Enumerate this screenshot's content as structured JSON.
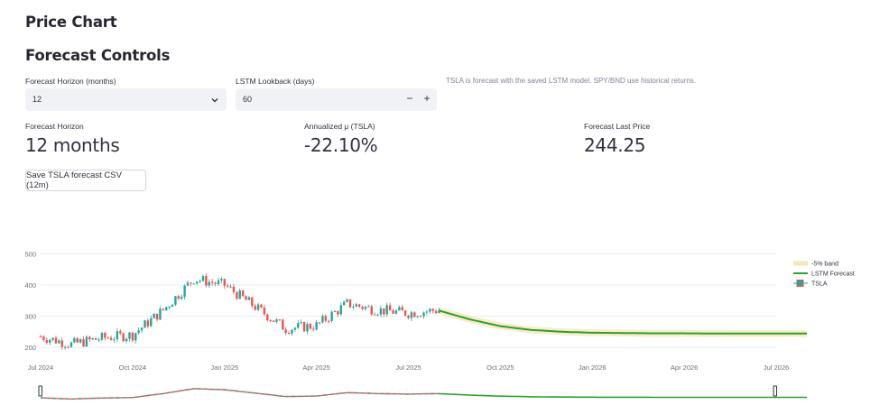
{
  "header": {
    "title": "Price Chart"
  },
  "controls": {
    "title": "Forecast Controls",
    "horizon": {
      "label": "Forecast Horizon (months)",
      "value": "12"
    },
    "lookback": {
      "label": "LSTM Lookback (days)",
      "value": "60",
      "minus": "−",
      "plus": "+"
    },
    "caption": "TSLA is forecast with the saved LSTM model. SPY/BND use historical returns."
  },
  "metrics": [
    {
      "label": "Forecast Horizon",
      "value": "12 months"
    },
    {
      "label": "Annualized μ (TSLA)",
      "value": "-22.10%"
    },
    {
      "label": "Forecast Last Price",
      "value": "244.25"
    }
  ],
  "save_button": {
    "label": "Save TSLA forecast CSV (12m)"
  },
  "chart_data": {
    "type": "line",
    "y_ticks": [
      "500",
      "400",
      "300",
      "200"
    ],
    "x_ticks": [
      "Jul 2024",
      "Oct 2024",
      "Jan 2025",
      "Apr 2025",
      "Jul 2025",
      "Oct 2025",
      "Jan 2026",
      "Apr 2026",
      "Jul 2026"
    ],
    "ylim": [
      180,
      510
    ],
    "legend": [
      "-5% band",
      "LSTM Forecast",
      "TSLA"
    ],
    "legend_position": "right",
    "grid": true,
    "colors": {
      "up": "#26a69a",
      "down": "#ef5350",
      "forecast": "#2ca02c",
      "band": "#f5e6b8"
    },
    "series": [
      {
        "name": "TSLA",
        "kind": "candlestick",
        "x": [
          "2024-07",
          "2024-08",
          "2024-09",
          "2024-10",
          "2024-11",
          "2024-12",
          "2025-01",
          "2025-02",
          "2025-03",
          "2025-04",
          "2025-05",
          "2025-06",
          "2025-07",
          "2025-08"
        ],
        "values": [
          235,
          210,
          230,
          240,
          320,
          420,
          400,
          330,
          260,
          270,
          340,
          320,
          310,
          320
        ]
      },
      {
        "name": "LSTM Forecast",
        "kind": "line",
        "x": [
          "2025-08",
          "2025-09",
          "2025-10",
          "2025-11",
          "2025-12",
          "2026-01",
          "2026-02",
          "2026-03",
          "2026-04",
          "2026-05",
          "2026-06",
          "2026-07",
          "2026-08"
        ],
        "values": [
          318,
          290,
          268,
          256,
          250,
          247,
          246,
          245,
          245,
          244.5,
          244.3,
          244.25,
          244.25
        ]
      },
      {
        "name": "-5% band",
        "kind": "band",
        "x": [
          "2025-08",
          "2025-09",
          "2025-10",
          "2025-11",
          "2025-12",
          "2026-01",
          "2026-02",
          "2026-03",
          "2026-04",
          "2026-05",
          "2026-06",
          "2026-07",
          "2026-08"
        ],
        "lower": [
          308,
          278,
          257,
          245,
          239,
          236,
          235,
          234,
          234,
          233.5,
          233.3,
          233.2,
          233.2
        ],
        "upper": [
          328,
          302,
          279,
          267,
          261,
          258,
          257,
          256,
          256,
          255.5,
          255.3,
          255.2,
          255.2
        ]
      }
    ]
  }
}
